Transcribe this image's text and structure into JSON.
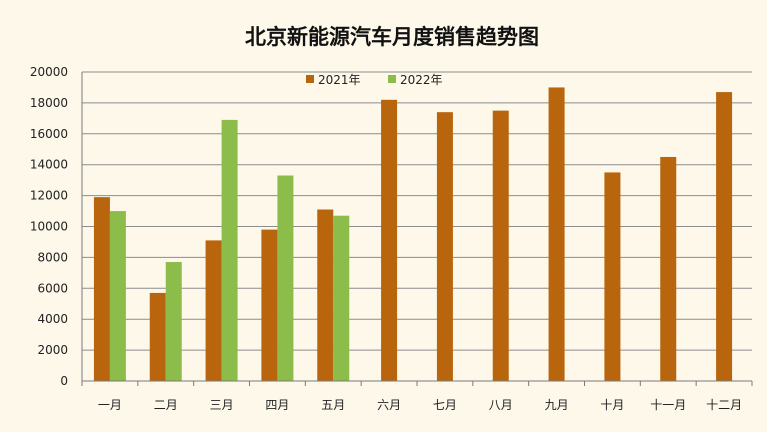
{
  "chart_data": {
    "type": "bar",
    "title": "北京新能源汽车月度销售趋势图",
    "xlabel": "",
    "ylabel": "",
    "categories": [
      "一月",
      "二月",
      "三月",
      "四月",
      "五月",
      "六月",
      "七月",
      "八月",
      "九月",
      "十月",
      "十一月",
      "十二月"
    ],
    "series": [
      {
        "name": "2021年",
        "color": "#b8650e",
        "values": [
          11900,
          5700,
          9100,
          9800,
          11100,
          18200,
          17400,
          17500,
          19000,
          13500,
          14500,
          18700
        ]
      },
      {
        "name": "2022年",
        "color": "#8cbd4b",
        "values": [
          11000,
          7700,
          16900,
          13300,
          10700,
          null,
          null,
          null,
          null,
          null,
          null,
          null
        ]
      }
    ],
    "ylim": [
      0,
      20000
    ],
    "yticks": [
      0,
      2000,
      4000,
      6000,
      8000,
      10000,
      12000,
      14000,
      16000,
      18000,
      20000
    ],
    "grid": true,
    "legend_position": "top-center"
  }
}
